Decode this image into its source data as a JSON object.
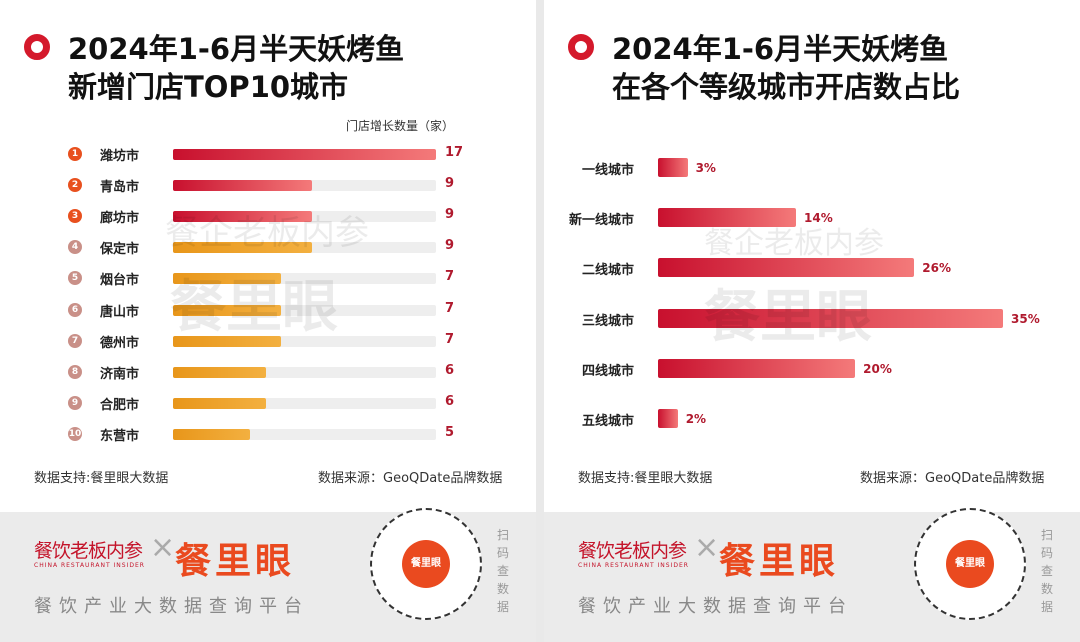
{
  "chart_data": [
    {
      "type": "bar",
      "orientation": "horizontal",
      "title": "2024年1-6月半天妖烤鱼 新增门店TOP10城市",
      "title_lines": [
        "2024年1-6月半天妖烤鱼",
        "新增门店TOP10城市"
      ],
      "unit_label": "门店增长数量（家）",
      "ranks": [
        "1",
        "2",
        "3",
        "4",
        "5",
        "6",
        "7",
        "8",
        "9",
        "10"
      ],
      "categories": [
        "潍坊市",
        "青岛市",
        "廊坊市",
        "保定市",
        "烟台市",
        "唐山市",
        "德州市",
        "济南市",
        "合肥市",
        "东营市"
      ],
      "values": [
        17,
        9,
        9,
        9,
        7,
        7,
        7,
        6,
        6,
        5
      ],
      "xlim": [
        0,
        17
      ],
      "source_left": "数据支持:餐里眼大数据",
      "source_right": "数据来源：GeoQDate品牌数据"
    },
    {
      "type": "bar",
      "orientation": "horizontal",
      "title": "2024年1-6月半天妖烤鱼 在各个等级城市开店数占比",
      "title_lines": [
        "2024年1-6月半天妖烤鱼",
        "在各个等级城市开店数占比"
      ],
      "categories": [
        "一线城市",
        "新一线城市",
        "二线城市",
        "三线城市",
        "四线城市",
        "五线城市"
      ],
      "values": [
        3,
        14,
        26,
        35,
        20,
        2
      ],
      "value_labels": [
        "3%",
        "14%",
        "26%",
        "35%",
        "20%",
        "2%"
      ],
      "xlim": [
        0,
        35
      ],
      "source_left": "数据支持:餐里眼大数据",
      "source_right": "数据来源：GeoQDate品牌数据"
    }
  ],
  "footer": {
    "logo1": "餐饮老板内参",
    "logo1_sub": "CHINA RESTAURANT INSIDER",
    "cross": "×",
    "logo2": "餐里眼",
    "tagline": "餐饮产业大数据查询平台",
    "qr_center": "餐里眼",
    "scan": "扫码查数据"
  },
  "watermark": {
    "line1": "餐企老板内参",
    "line2": "餐里眼"
  },
  "colors": {
    "red": "#d4192b",
    "orange": "#f0a020",
    "value": "#b01a2e",
    "rank_top": "#e8501e",
    "rank_rest": "#c99088"
  }
}
